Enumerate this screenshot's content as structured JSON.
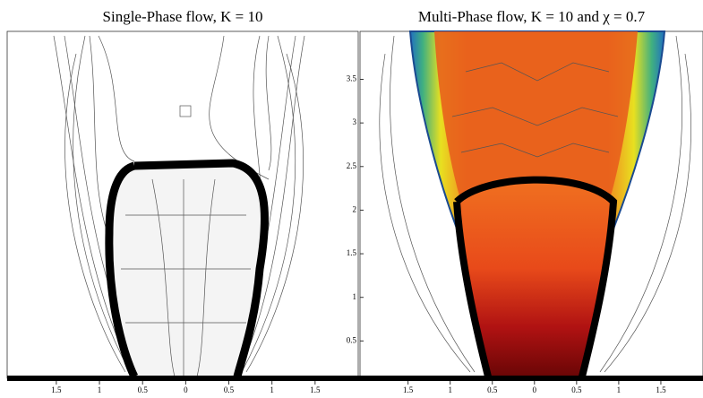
{
  "panels": [
    {
      "title": "Single-Phase flow, K = 10",
      "xlim": [
        -2.07,
        2.0
      ],
      "ylim": [
        0,
        4.05
      ],
      "xticks": [
        {
          "value": -1.5,
          "label": "1.5"
        },
        {
          "value": -1,
          "label": "1"
        },
        {
          "value": -0.5,
          "label": "0.5"
        },
        0,
        0.5,
        1,
        1.5
      ]
    },
    {
      "title": "Multi-Phase flow, K = 10 and χ = 0.7",
      "xlim": [
        -2.07,
        2.0
      ],
      "ylim": [
        0,
        4.05
      ],
      "xticks": [
        {
          "value": -1.5,
          "label": "1.5"
        },
        {
          "value": -1,
          "label": "1"
        },
        {
          "value": -0.5,
          "label": "0.5"
        },
        0,
        0.5,
        1,
        1.5
      ],
      "yticks": [
        0.5,
        1,
        1.5,
        2,
        2.5,
        3,
        3.5
      ]
    }
  ]
}
